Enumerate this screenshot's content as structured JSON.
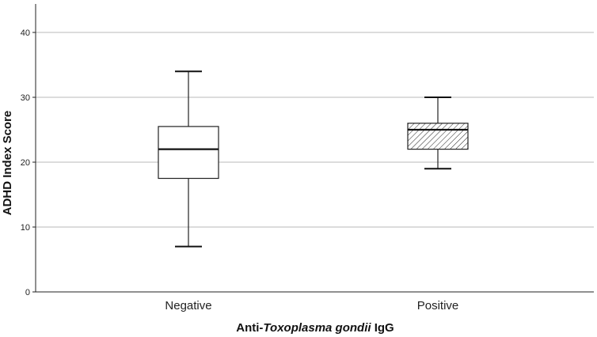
{
  "chart_data": {
    "type": "box",
    "ylabel": "ADHD Index Score",
    "xlabel": {
      "prefix": "Anti-",
      "italic": "Toxoplasma gondii",
      "suffix": " IgG"
    },
    "ylim": [
      0,
      45
    ],
    "yticks": [
      0,
      10,
      20,
      30,
      40
    ],
    "grid": true,
    "categories": [
      "Negative",
      "Positive"
    ],
    "boxes": [
      {
        "category": "Negative",
        "min": 7,
        "q1": 17.5,
        "median": 22,
        "q3": 25.5,
        "max": 34,
        "fill": "none"
      },
      {
        "category": "Positive",
        "min": 19,
        "q1": 22,
        "median": 25,
        "q3": 26,
        "max": 30,
        "fill": "hatched"
      }
    ]
  }
}
